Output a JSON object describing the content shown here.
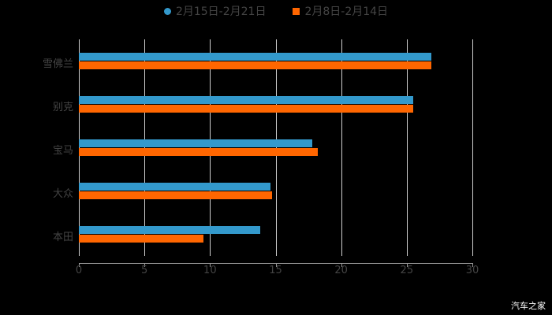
{
  "chart_data": {
    "type": "bar",
    "orientation": "horizontal",
    "title": "",
    "xlabel": "",
    "ylabel": "",
    "categories": [
      "雪佛兰",
      "别克",
      "宝马",
      "大众",
      "本田"
    ],
    "series": [
      {
        "name": "2月15日-2月21日",
        "color": "#3399cc",
        "values": [
          26.9,
          25.5,
          17.8,
          14.6,
          13.8
        ]
      },
      {
        "name": "2月8日-2月14日",
        "color": "#ff6600",
        "values": [
          26.9,
          25.5,
          18.2,
          14.7,
          9.5
        ]
      }
    ],
    "xlim": [
      0,
      30
    ],
    "xticks": [
      "0",
      "5",
      "10",
      "15",
      "20",
      "25",
      "30"
    ],
    "grid": true,
    "legend_position": "top"
  },
  "legend": [
    {
      "label": "2月15日-2月21日",
      "color": "#3399cc",
      "shape": "circle"
    },
    {
      "label": "2月8日-2月14日",
      "color": "#ff6600",
      "shape": "square"
    }
  ],
  "watermark": "汽车之家"
}
